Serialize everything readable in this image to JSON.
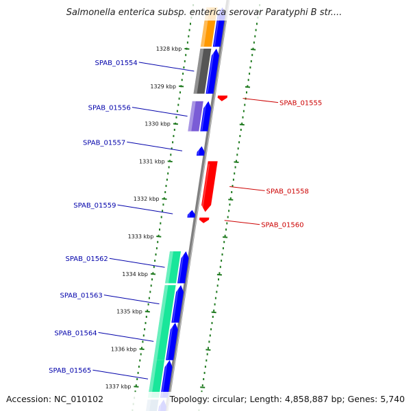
{
  "title": "Salmonella enterica subsp. enterica serovar Paratyphi B str....",
  "footer": {
    "accession": "Accession: NC_010102",
    "topology": "Topology: circular; Length: 4,858,887 bp; Genes: 5,740"
  },
  "colors": {
    "forward_cds": "#0000ff",
    "reverse_cds": "#ff0000",
    "label_forward": "#0000aa",
    "label_reverse": "#cc0000",
    "backbone": "#808080",
    "ticks": "#1f7a1f",
    "cog_orange": "#ff9900",
    "cog_gray": "#555555",
    "cog_purple": "#7a5cd6",
    "cog_green": "#19e69a",
    "cog_steel": "#4f86b5"
  },
  "ticks": [
    {
      "label": "1328 kbp",
      "kbp": 1328
    },
    {
      "label": "1329 kbp",
      "kbp": 1329
    },
    {
      "label": "1330 kbp",
      "kbp": 1330
    },
    {
      "label": "1331 kbp",
      "kbp": 1331
    },
    {
      "label": "1332 kbp",
      "kbp": 1332
    },
    {
      "label": "1333 kbp",
      "kbp": 1333
    },
    {
      "label": "1334 kbp",
      "kbp": 1334
    },
    {
      "label": "1335 kbp",
      "kbp": 1335
    },
    {
      "label": "1336 kbp",
      "kbp": 1336
    },
    {
      "label": "1337 kbp",
      "kbp": 1337
    }
  ],
  "genes": [
    {
      "name": "SPAB_01554",
      "strand": "+",
      "start_kbp": 1328.0,
      "end_kbp": 1329.2,
      "cog": "cog_gray"
    },
    {
      "name": "SPAB_01555",
      "strand": "-",
      "start_kbp": 1329.25,
      "end_kbp": 1329.4,
      "cog": ""
    },
    {
      "name": "SPAB_01556",
      "strand": "+",
      "start_kbp": 1329.4,
      "end_kbp": 1330.2,
      "cog": "cog_purple"
    },
    {
      "name": "SPAB_01557",
      "strand": "+",
      "start_kbp": 1330.6,
      "end_kbp": 1330.85,
      "cog": ""
    },
    {
      "name": "SPAB_01558",
      "strand": "-",
      "start_kbp": 1331.0,
      "end_kbp": 1332.35,
      "cog": ""
    },
    {
      "name": "SPAB_01559",
      "strand": "+",
      "start_kbp": 1332.3,
      "end_kbp": 1332.5,
      "cog": ""
    },
    {
      "name": "SPAB_01560",
      "strand": "-",
      "start_kbp": 1332.5,
      "end_kbp": 1332.65,
      "cog": ""
    },
    {
      "name": "SPAB_01562",
      "strand": "+",
      "start_kbp": 1333.4,
      "end_kbp": 1334.25,
      "cog": "cog_green"
    },
    {
      "name": "SPAB_01563",
      "strand": "+",
      "start_kbp": 1334.3,
      "end_kbp": 1335.3,
      "cog": "cog_green"
    },
    {
      "name": "SPAB_01564",
      "strand": "+",
      "start_kbp": 1335.3,
      "end_kbp": 1336.3,
      "cog": "cog_green"
    },
    {
      "name": "SPAB_01565",
      "strand": "+",
      "start_kbp": 1336.3,
      "end_kbp": 1337.3,
      "cog": "cog_green"
    }
  ],
  "partial_features": [
    {
      "strand": "+",
      "start_kbp": 1326.9,
      "end_kbp": 1327.95,
      "cog": "cog_orange"
    },
    {
      "strand": "+",
      "start_kbp": 1337.35,
      "end_kbp": 1337.8,
      "cog": "cog_steel"
    }
  ]
}
